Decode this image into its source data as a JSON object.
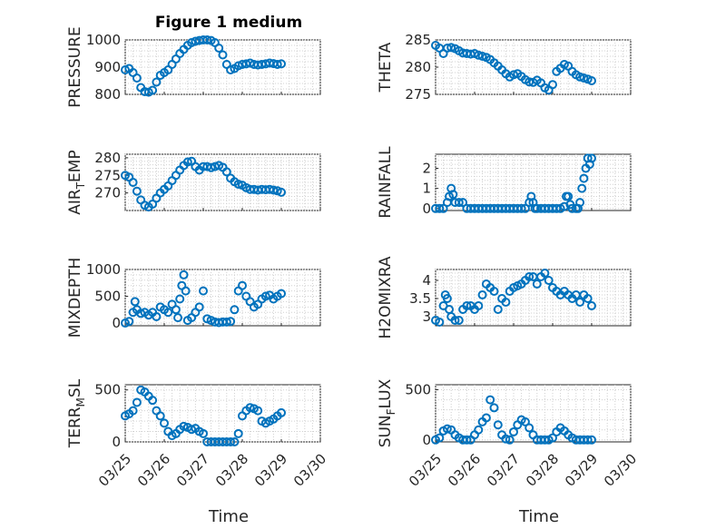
{
  "figure": {
    "title": "Figure 1 medium",
    "xlabel": "Time"
  },
  "chart_data": [
    {
      "type": "scatter",
      "panel": "top-left",
      "ylabel": "PRESSURE",
      "ylim": [
        800,
        1000
      ],
      "yticks": [
        "800",
        "900",
        "1000"
      ],
      "yvals": [
        800,
        900,
        1000
      ],
      "xlim": [
        0,
        5
      ],
      "xticks": [
        "03/25",
        "03/26",
        "03/27",
        "03/28",
        "03/29",
        "03/30"
      ],
      "xticklabels_shown": false,
      "series": [
        {
          "x": [
            0.0,
            0.1,
            0.2,
            0.3,
            0.4,
            0.5,
            0.6,
            0.7,
            0.8,
            0.9,
            1.0,
            1.1,
            1.2,
            1.3,
            1.4,
            1.5,
            1.6,
            1.7,
            1.8,
            1.9,
            2.0,
            2.1,
            2.2,
            2.3,
            2.4,
            2.5,
            2.6,
            2.7,
            2.8,
            2.9,
            3.0,
            3.1,
            3.2,
            3.3,
            3.4,
            3.5,
            3.6,
            3.7,
            3.8,
            3.9,
            4.0
          ],
          "y": [
            890,
            895,
            880,
            860,
            825,
            810,
            808,
            815,
            845,
            870,
            880,
            890,
            910,
            930,
            950,
            965,
            980,
            990,
            995,
            998,
            1000,
            1000,
            998,
            990,
            970,
            945,
            910,
            890,
            895,
            905,
            910,
            912,
            915,
            910,
            908,
            910,
            912,
            915,
            913,
            910,
            912
          ]
        }
      ]
    },
    {
      "type": "scatter",
      "panel": "top-right",
      "ylabel": "THETA",
      "ylim": [
        275,
        285
      ],
      "yticks": [
        "275",
        "280",
        "285"
      ],
      "yvals": [
        275,
        280,
        285
      ],
      "xlim": [
        0,
        5
      ],
      "xticks": [
        "03/25",
        "03/26",
        "03/27",
        "03/28",
        "03/29",
        "03/30"
      ],
      "xticklabels_shown": false,
      "series": [
        {
          "x": [
            0.0,
            0.1,
            0.2,
            0.3,
            0.4,
            0.5,
            0.6,
            0.7,
            0.8,
            0.9,
            1.0,
            1.1,
            1.2,
            1.3,
            1.4,
            1.5,
            1.6,
            1.7,
            1.8,
            1.9,
            2.0,
            2.1,
            2.2,
            2.3,
            2.4,
            2.5,
            2.6,
            2.7,
            2.8,
            2.9,
            3.0,
            3.1,
            3.2,
            3.3,
            3.4,
            3.5,
            3.6,
            3.7,
            3.8,
            3.9,
            4.0
          ],
          "y": [
            284,
            283.5,
            282.5,
            283.5,
            283.6,
            283.4,
            283,
            282.6,
            282.5,
            282.4,
            282.5,
            282.2,
            282,
            281.8,
            281.4,
            280.8,
            280.2,
            279.5,
            278.8,
            278.2,
            278.6,
            278.8,
            278.3,
            277.7,
            277.3,
            277.2,
            277.6,
            277.1,
            276.2,
            275.8,
            276.8,
            279.2,
            279.8,
            280.5,
            280.2,
            279.2,
            278.6,
            278.2,
            278,
            277.8,
            277.5
          ]
        }
      ]
    },
    {
      "type": "scatter",
      "panel": "mid1-left",
      "ylabel": "AIR_TEMP",
      "ylim": [
        265,
        281
      ],
      "yticks": [
        "270",
        "275",
        "280"
      ],
      "yvals": [
        270,
        275,
        280
      ],
      "xlim": [
        0,
        5
      ],
      "xticks": [
        "03/25",
        "03/26",
        "03/27",
        "03/28",
        "03/29",
        "03/30"
      ],
      "xticklabels_shown": false,
      "series": [
        {
          "x": [
            0.0,
            0.1,
            0.2,
            0.3,
            0.4,
            0.5,
            0.6,
            0.7,
            0.8,
            0.9,
            1.0,
            1.1,
            1.2,
            1.3,
            1.4,
            1.5,
            1.6,
            1.7,
            1.8,
            1.9,
            2.0,
            2.1,
            2.2,
            2.3,
            2.4,
            2.5,
            2.6,
            2.7,
            2.8,
            2.9,
            3.0,
            3.1,
            3.2,
            3.3,
            3.4,
            3.5,
            3.6,
            3.7,
            3.8,
            3.9,
            4.0
          ],
          "y": [
            275,
            274.5,
            273,
            270.5,
            268,
            266.5,
            266,
            266.8,
            268.5,
            270,
            271,
            272,
            273.5,
            275,
            276.5,
            277.8,
            278.8,
            279,
            277.5,
            276.5,
            277.5,
            277.5,
            277.2,
            277.5,
            277.8,
            277.3,
            276,
            274.2,
            273.2,
            272.5,
            272.2,
            271.5,
            271,
            271,
            270.8,
            271,
            270.9,
            271,
            270.8,
            270.6,
            270.2
          ]
        }
      ]
    },
    {
      "type": "scatter",
      "panel": "mid1-right",
      "ylabel": "RAINFALL",
      "ylim": [
        -0.1,
        2.7
      ],
      "yticks": [
        "0",
        "1",
        "2"
      ],
      "yvals": [
        0,
        1,
        2
      ],
      "xlim": [
        0,
        5
      ],
      "xticks": [
        "03/25",
        "03/26",
        "03/27",
        "03/28",
        "03/29",
        "03/30"
      ],
      "xticklabels_shown": false,
      "series": [
        {
          "x": [
            0.0,
            0.1,
            0.2,
            0.3,
            0.35,
            0.4,
            0.45,
            0.5,
            0.6,
            0.7,
            0.8,
            0.9,
            1.0,
            1.1,
            1.2,
            1.3,
            1.4,
            1.5,
            1.6,
            1.7,
            1.8,
            1.9,
            2.0,
            2.1,
            2.2,
            2.3,
            2.4,
            2.45,
            2.5,
            2.55,
            2.6,
            2.7,
            2.8,
            2.9,
            3.0,
            3.1,
            3.2,
            3.3,
            3.35,
            3.4,
            3.45,
            3.5,
            3.6,
            3.65,
            3.7,
            3.75,
            3.8,
            3.85,
            3.9,
            3.95,
            4.0
          ],
          "y": [
            0,
            0,
            0,
            0.3,
            0.6,
            1.0,
            0.7,
            0.3,
            0.3,
            0.3,
            0,
            0,
            0,
            0,
            0,
            0,
            0,
            0,
            0,
            0,
            0,
            0,
            0,
            0,
            0,
            0,
            0.3,
            0.6,
            0.3,
            0,
            0,
            0,
            0,
            0,
            0,
            0,
            0,
            0.1,
            0.6,
            0.6,
            0.2,
            0,
            0,
            0,
            0.3,
            1.0,
            1.5,
            2.0,
            2.5,
            2.2,
            2.5
          ]
        }
      ]
    },
    {
      "type": "scatter",
      "panel": "mid2-left",
      "ylabel": "MIXDEPTH",
      "ylim": [
        -50,
        1000
      ],
      "yticks": [
        "0",
        "500",
        "1000"
      ],
      "yvals": [
        0,
        500,
        1000
      ],
      "xlim": [
        0,
        5
      ],
      "xticks": [
        "03/25",
        "03/26",
        "03/27",
        "03/28",
        "03/29",
        "03/30"
      ],
      "xticklabels_shown": false,
      "series": [
        {
          "x": [
            0.0,
            0.1,
            0.2,
            0.25,
            0.3,
            0.4,
            0.5,
            0.6,
            0.7,
            0.8,
            0.9,
            1.0,
            1.1,
            1.2,
            1.3,
            1.35,
            1.4,
            1.45,
            1.5,
            1.55,
            1.6,
            1.7,
            1.8,
            1.9,
            2.0,
            2.1,
            2.2,
            2.3,
            2.4,
            2.5,
            2.6,
            2.7,
            2.8,
            2.9,
            3.0,
            3.1,
            3.2,
            3.3,
            3.4,
            3.5,
            3.6,
            3.7,
            3.8,
            3.9,
            4.0
          ],
          "y": [
            0,
            30,
            200,
            400,
            250,
            180,
            200,
            150,
            200,
            120,
            300,
            250,
            200,
            350,
            250,
            100,
            450,
            700,
            900,
            600,
            50,
            100,
            200,
            300,
            600,
            80,
            50,
            20,
            10,
            20,
            20,
            30,
            250,
            600,
            700,
            500,
            400,
            300,
            350,
            450,
            500,
            520,
            450,
            500,
            550
          ]
        }
      ]
    },
    {
      "type": "scatter",
      "panel": "mid2-right",
      "ylabel": "H2OMIXRA",
      "ylim": [
        2.75,
        4.3
      ],
      "yticks": [
        "3",
        "3.5",
        "4"
      ],
      "yvals": [
        3,
        3.5,
        4
      ],
      "xlim": [
        0,
        5
      ],
      "xticks": [
        "03/25",
        "03/26",
        "03/27",
        "03/28",
        "03/29",
        "03/30"
      ],
      "xticklabels_shown": false,
      "series": [
        {
          "x": [
            0.0,
            0.1,
            0.2,
            0.25,
            0.3,
            0.35,
            0.4,
            0.5,
            0.6,
            0.7,
            0.8,
            0.9,
            1.0,
            1.1,
            1.2,
            1.3,
            1.4,
            1.5,
            1.6,
            1.7,
            1.8,
            1.9,
            2.0,
            2.1,
            2.2,
            2.3,
            2.4,
            2.5,
            2.6,
            2.7,
            2.8,
            2.9,
            3.0,
            3.1,
            3.2,
            3.3,
            3.4,
            3.5,
            3.6,
            3.7,
            3.8,
            3.9,
            4.0
          ],
          "y": [
            2.9,
            2.85,
            3.3,
            3.6,
            3.5,
            3.2,
            3.0,
            2.9,
            2.9,
            3.2,
            3.3,
            3.3,
            3.2,
            3.3,
            3.6,
            3.9,
            3.8,
            3.7,
            3.2,
            3.5,
            3.4,
            3.7,
            3.8,
            3.85,
            3.9,
            4.0,
            4.1,
            4.1,
            3.9,
            4.1,
            4.2,
            4.0,
            3.8,
            3.7,
            3.6,
            3.7,
            3.6,
            3.5,
            3.6,
            3.4,
            3.6,
            3.5,
            3.3
          ]
        }
      ]
    },
    {
      "type": "scatter",
      "panel": "bottom-left",
      "ylabel": "TERR_MSL",
      "ylim": [
        0,
        550
      ],
      "yticks": [
        "0",
        "500"
      ],
      "yvals": [
        0,
        500
      ],
      "xlim": [
        0,
        5
      ],
      "xticks": [
        "03/25",
        "03/26",
        "03/27",
        "03/28",
        "03/29",
        "03/30"
      ],
      "xticklabels_shown": true,
      "series": [
        {
          "x": [
            0.0,
            0.1,
            0.2,
            0.3,
            0.4,
            0.5,
            0.6,
            0.7,
            0.8,
            0.9,
            1.0,
            1.1,
            1.2,
            1.3,
            1.4,
            1.5,
            1.6,
            1.7,
            1.8,
            1.9,
            2.0,
            2.1,
            2.2,
            2.3,
            2.4,
            2.5,
            2.6,
            2.7,
            2.8,
            2.9,
            3.0,
            3.1,
            3.2,
            3.3,
            3.4,
            3.5,
            3.6,
            3.7,
            3.8,
            3.9,
            4.0
          ],
          "y": [
            250,
            270,
            300,
            380,
            500,
            480,
            440,
            400,
            300,
            250,
            180,
            100,
            60,
            80,
            120,
            150,
            140,
            120,
            130,
            100,
            80,
            0,
            0,
            0,
            0,
            0,
            0,
            0,
            0,
            80,
            250,
            300,
            330,
            320,
            300,
            200,
            180,
            200,
            220,
            250,
            280
          ]
        }
      ]
    },
    {
      "type": "scatter",
      "panel": "bottom-right",
      "ylabel": "SUN_FLUX",
      "ylim": [
        -20,
        550
      ],
      "yticks": [
        "0",
        "500"
      ],
      "yvals": [
        0,
        500
      ],
      "xlim": [
        0,
        5
      ],
      "xticks": [
        "03/25",
        "03/26",
        "03/27",
        "03/28",
        "03/29",
        "03/30"
      ],
      "xticklabels_shown": true,
      "series": [
        {
          "x": [
            0.0,
            0.1,
            0.2,
            0.3,
            0.4,
            0.5,
            0.6,
            0.7,
            0.8,
            0.9,
            1.0,
            1.1,
            1.2,
            1.3,
            1.4,
            1.5,
            1.6,
            1.7,
            1.8,
            1.9,
            2.0,
            2.1,
            2.2,
            2.3,
            2.4,
            2.5,
            2.6,
            2.7,
            2.8,
            2.9,
            3.0,
            3.1,
            3.2,
            3.3,
            3.4,
            3.5,
            3.6,
            3.7,
            3.8,
            3.9,
            4.0
          ],
          "y": [
            0,
            20,
            90,
            110,
            100,
            50,
            20,
            0,
            0,
            0,
            50,
            100,
            180,
            220,
            400,
            320,
            150,
            50,
            10,
            0,
            80,
            150,
            200,
            180,
            120,
            50,
            0,
            0,
            0,
            0,
            20,
            80,
            120,
            90,
            50,
            20,
            0,
            0,
            0,
            0,
            0
          ]
        }
      ]
    }
  ]
}
